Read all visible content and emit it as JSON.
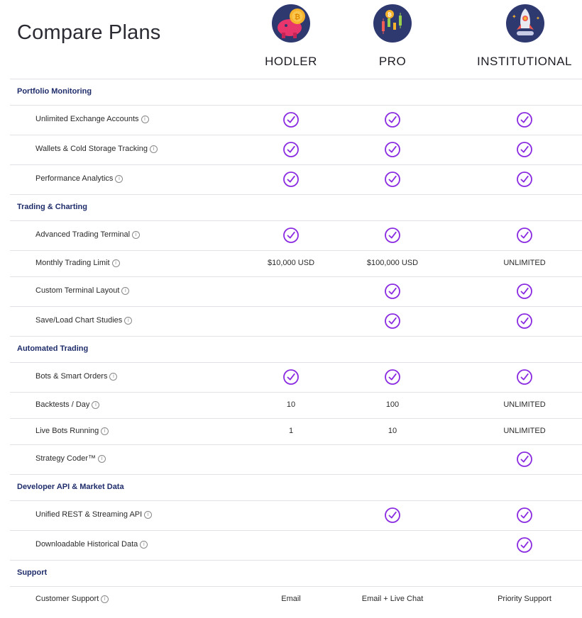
{
  "title": "Compare Plans",
  "plans": [
    {
      "name": "HODLER",
      "icon": "piggy-bank-icon"
    },
    {
      "name": "PRO",
      "icon": "candlestick-chart-icon"
    },
    {
      "name": "INSTITUTIONAL",
      "icon": "rocket-icon"
    }
  ],
  "colors": {
    "accent": "#8a2be2",
    "section": "#1f2d6b",
    "divider": "#e1e1e6"
  },
  "info_glyph": "i",
  "sections": [
    {
      "name": "Portfolio Monitoring"
    },
    {
      "name": "Trading & Charting"
    },
    {
      "name": "Automated Trading"
    },
    {
      "name": "Developer API & Market Data"
    },
    {
      "name": "Support"
    }
  ],
  "rows": [
    {
      "label": "Unlimited Exchange Accounts",
      "values": [
        "check",
        "check",
        "check"
      ]
    },
    {
      "label": "Wallets & Cold Storage Tracking",
      "values": [
        "check",
        "check",
        "check"
      ]
    },
    {
      "label": "Performance Analytics",
      "values": [
        "check",
        "check",
        "check"
      ]
    },
    {
      "label": "Advanced Trading Terminal",
      "values": [
        "check",
        "check",
        "check"
      ]
    },
    {
      "label": "Monthly Trading Limit",
      "values": [
        "$10,000 USD",
        "$100,000 USD",
        "UNLIMITED"
      ]
    },
    {
      "label": "Custom Terminal Layout",
      "values": [
        "",
        "check",
        "check"
      ]
    },
    {
      "label": "Save/Load Chart Studies",
      "values": [
        "",
        "check",
        "check"
      ]
    },
    {
      "label": "Bots & Smart Orders",
      "values": [
        "check",
        "check",
        "check"
      ]
    },
    {
      "label": "Backtests / Day",
      "values": [
        "10",
        "100",
        "UNLIMITED"
      ]
    },
    {
      "label": "Live Bots Running",
      "values": [
        "1",
        "10",
        "UNLIMITED"
      ]
    },
    {
      "label": "Strategy Coder™",
      "values": [
        "",
        "",
        "check"
      ]
    },
    {
      "label": "Unified REST & Streaming API",
      "values": [
        "",
        "check",
        "check"
      ]
    },
    {
      "label": "Downloadable Historical Data",
      "values": [
        "",
        "",
        "check"
      ]
    },
    {
      "label": "Customer Support",
      "values": [
        "Email",
        "Email + Live Chat",
        "Priority Support"
      ]
    }
  ]
}
